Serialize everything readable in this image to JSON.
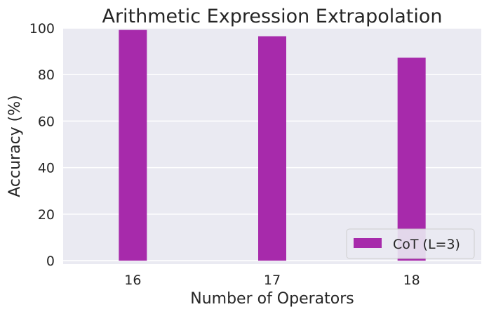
{
  "chart_data": {
    "type": "bar",
    "title": "Arithmetic Expression Extrapolation",
    "xlabel": "Number of Operators",
    "ylabel": "Accuracy (%)",
    "categories": [
      "16",
      "17",
      "18"
    ],
    "series": [
      {
        "name": "CoT (L=3)",
        "values": [
          99.2,
          96.5,
          87.3
        ],
        "color": "#a72aab"
      }
    ],
    "ylim": [
      -1.5,
      100
    ],
    "yticks": [
      "0",
      "20",
      "40",
      "60",
      "80",
      "100"
    ],
    "grid": true,
    "legend": "bottom-right",
    "background": "#eaeaf2"
  }
}
